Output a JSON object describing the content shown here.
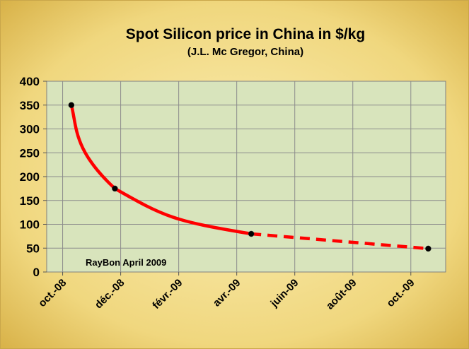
{
  "chart_data": {
    "type": "line",
    "title": "Spot Silicon price in China in $/kg",
    "subtitle": "(J.L. Mc Gregor, China)",
    "annotation": "RayBon April 2009",
    "xlabel": "",
    "ylabel": "",
    "ylim": [
      0,
      400
    ],
    "y_ticks": [
      0,
      50,
      100,
      150,
      200,
      250,
      300,
      350,
      400
    ],
    "x_tick_labels": [
      "oct.-08",
      "déc.-08",
      "févr.-09",
      "avr.-09",
      "juin-09",
      "août-09",
      "oct.-09"
    ],
    "x_tick_month_index": [
      0,
      2,
      4,
      6,
      8,
      10,
      12
    ],
    "xlim_month_index": [
      -0.55,
      13.2
    ],
    "grid": true,
    "legend": "none",
    "series": [
      {
        "name": "actual",
        "style": "solid",
        "points": [
          {
            "month_index": 0.3,
            "value": 350
          },
          {
            "month_index": 1.8,
            "value": 175
          },
          {
            "month_index": 6.5,
            "value": 80
          }
        ]
      },
      {
        "name": "forecast",
        "style": "dashed",
        "points": [
          {
            "month_index": 6.5,
            "value": 80
          },
          {
            "month_index": 12.6,
            "value": 49
          }
        ]
      }
    ]
  },
  "colors": {
    "plot_bg": "#d8e4bc",
    "line": "#ff0000",
    "marker": "#000000",
    "grid": "#8c8c8c",
    "frame_light": "#fbeeb4",
    "frame_dark": "#d9b34a"
  }
}
